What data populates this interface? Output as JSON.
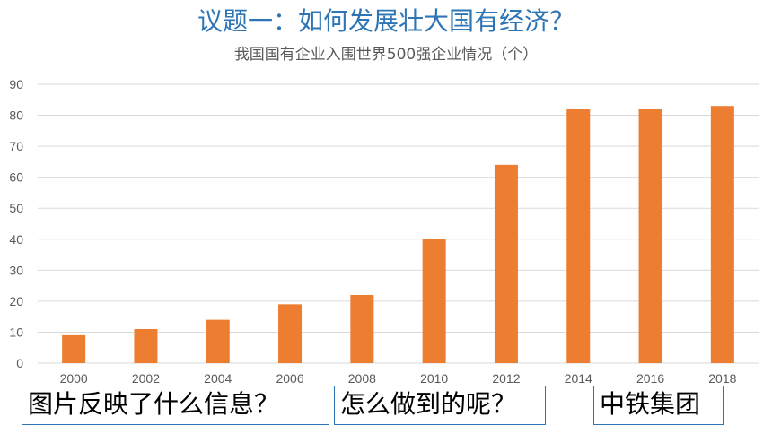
{
  "heading": "议题一：如何发展壮大国有经济？",
  "chart_data": {
    "type": "bar",
    "title": "我国国有企业入围世界500强企业情况（个）",
    "categories": [
      "2000",
      "2002",
      "2004",
      "2006",
      "2008",
      "2010",
      "2012",
      "2014",
      "2016",
      "2018"
    ],
    "values": [
      9,
      11,
      14,
      19,
      22,
      40,
      64,
      82,
      82,
      83
    ],
    "y_ticks": [
      "0",
      "10",
      "20",
      "30",
      "40",
      "50",
      "60",
      "70",
      "80",
      "90"
    ],
    "ylim": [
      0,
      90
    ],
    "grid": true,
    "bar_color": "#ed7d31",
    "grid_color": "#d9d9d9",
    "tick_color": "#595959"
  },
  "questions": {
    "q1": "图片反映了什么信息？",
    "q2": "怎么做到的呢？",
    "q3": "中铁集团"
  }
}
